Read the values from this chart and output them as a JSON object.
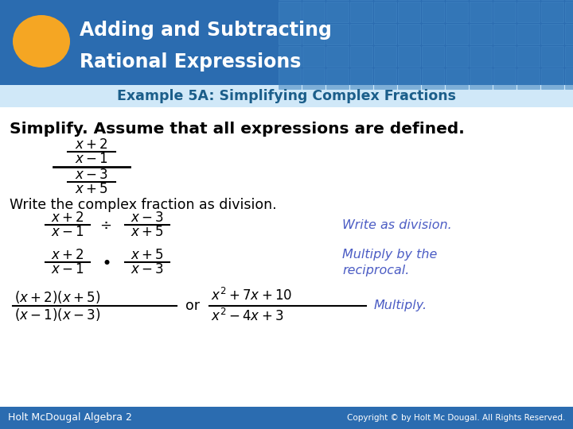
{
  "header_bg_color": "#2B6CB0",
  "header_text_line1": "Adding and Subtracting",
  "header_text_line2": "Rational Expressions",
  "header_text_color": "#FFFFFF",
  "oval_color": "#F5A623",
  "example_label": "Example 5A: Simplifying Complex Fractions",
  "example_label_color": "#1B5E8A",
  "body_bg": "#FFFFFF",
  "instruction_text": "Simplify. Assume that all expressions are defined.",
  "instruction_color": "#000000",
  "annotation_color": "#4B5CC4",
  "footer_text_left": "Holt McDougal Algebra 2",
  "footer_text_right": "Copyright © by Holt Mc Dougal. All Rights Reserved.",
  "footer_bg_color": "#2B6CB0",
  "footer_text_color": "#FFFFFF",
  "subtitle_bg_color": "#D0E8F8",
  "tile_color": "#3A7FBD",
  "tile_edge_color": "#4A90CC"
}
